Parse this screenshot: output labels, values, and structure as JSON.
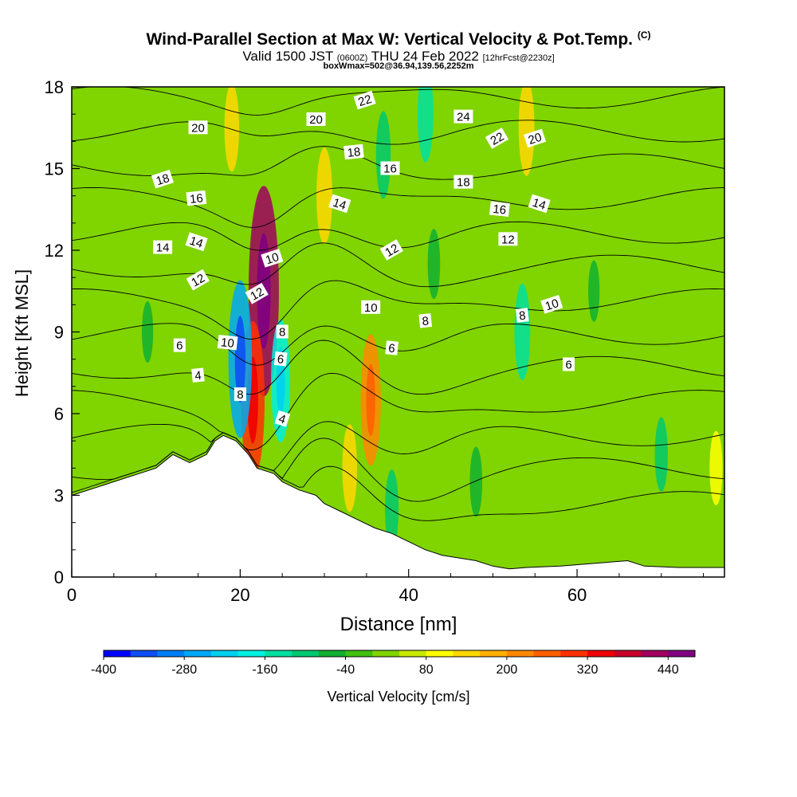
{
  "header": {
    "title": "Wind-Parallel Section at Max W: Vertical Velocity & Pot.Temp.",
    "title_mark": "(C)",
    "valid_a": "Valid 1500 JST",
    "valid_b": "(0600Z)",
    "valid_c": "THU 24 Feb 2022",
    "valid_d": "[12hrFcst@2230z]",
    "subtitle": "boxWmax=502@36.94,139.56,2252m"
  },
  "chart_data": {
    "type": "heatmap",
    "xlabel": "Distance [nm]",
    "ylabel": "Height [Kft MSL]",
    "xlim": [
      0,
      77.5
    ],
    "ylim": [
      0,
      18
    ],
    "x_ticks": [
      "0",
      "20",
      "40",
      "60"
    ],
    "y_ticks": [
      "0",
      "3",
      "6",
      "9",
      "12",
      "15",
      "18"
    ],
    "colorbar": {
      "label": "Vertical Velocity [cm/s]",
      "tick_labels": [
        "-400",
        "-280",
        "-160",
        "-40",
        "80",
        "200",
        "320",
        "440"
      ],
      "tick_values": [
        -400,
        -280,
        -160,
        -40,
        80,
        200,
        320,
        440
      ],
      "levels": [
        -400,
        -360,
        -320,
        -280,
        -240,
        -200,
        -160,
        -120,
        -80,
        -40,
        0,
        40,
        80,
        120,
        160,
        200,
        240,
        280,
        320,
        360,
        400,
        440,
        480
      ],
      "colors": [
        "#0000ff",
        "#0f4ff5",
        "#007ff5",
        "#00a8f5",
        "#00d0f0",
        "#00f0e0",
        "#00e0a0",
        "#00c870",
        "#10b030",
        "#40c010",
        "#80d400",
        "#c8ea00",
        "#ffff00",
        "#ffd800",
        "#ffb000",
        "#ff8800",
        "#ff6000",
        "#ff3000",
        "#f00000",
        "#c8002a",
        "#a00060",
        "#800080"
      ]
    },
    "terrain_kft": [
      [
        0,
        3.0
      ],
      [
        3,
        3.3
      ],
      [
        5,
        3.5
      ],
      [
        8,
        3.8
      ],
      [
        10,
        4.0
      ],
      [
        12,
        4.5
      ],
      [
        14,
        4.2
      ],
      [
        16,
        4.5
      ],
      [
        17,
        5.0
      ],
      [
        18,
        5.2
      ],
      [
        19.5,
        5.0
      ],
      [
        21,
        4.5
      ],
      [
        22,
        4.0
      ],
      [
        24,
        3.8
      ],
      [
        25,
        3.5
      ],
      [
        27,
        3.2
      ],
      [
        29,
        3.0
      ],
      [
        30,
        2.7
      ],
      [
        32,
        2.4
      ],
      [
        34,
        2.1
      ],
      [
        36,
        1.8
      ],
      [
        38,
        1.6
      ],
      [
        40,
        1.3
      ],
      [
        42,
        1.0
      ],
      [
        44,
        0.8
      ],
      [
        46,
        0.7
      ],
      [
        48,
        0.6
      ],
      [
        50,
        0.4
      ],
      [
        52,
        0.3
      ],
      [
        54,
        0.35
      ],
      [
        58,
        0.4
      ],
      [
        62,
        0.5
      ],
      [
        66,
        0.6
      ],
      [
        68,
        0.4
      ],
      [
        72,
        0.35
      ],
      [
        77.5,
        0.35
      ]
    ],
    "vertical_velocity_features_cms": [
      {
        "x": 22.8,
        "z": 10.5,
        "value": 400
      },
      {
        "x": 21.5,
        "z": 6.5,
        "value": 280
      },
      {
        "x": 20.0,
        "z": 8.0,
        "value": -280
      },
      {
        "x": 24.8,
        "z": 7.2,
        "value": -200
      },
      {
        "x": 35.5,
        "z": 6.5,
        "value": 220
      },
      {
        "x": 33.0,
        "z": 4.0,
        "value": 120
      },
      {
        "x": 19.0,
        "z": 16.5,
        "value": 120
      },
      {
        "x": 30.0,
        "z": 14.0,
        "value": 140
      },
      {
        "x": 54.0,
        "z": 16.5,
        "value": 140
      },
      {
        "x": 37.0,
        "z": 15.5,
        "value": -120
      },
      {
        "x": 42.0,
        "z": 17.0,
        "value": -140
      },
      {
        "x": 43.0,
        "z": 11.5,
        "value": -80
      },
      {
        "x": 53.5,
        "z": 9.0,
        "value": -140
      },
      {
        "x": 48.0,
        "z": 3.5,
        "value": -80
      },
      {
        "x": 38.0,
        "z": 2.5,
        "value": -100
      },
      {
        "x": 70.0,
        "z": 4.5,
        "value": -90
      },
      {
        "x": 9.0,
        "z": 9.0,
        "value": -60
      },
      {
        "x": 76.5,
        "z": 4.0,
        "value": 90
      },
      {
        "x": 62.0,
        "z": 10.5,
        "value": -60
      }
    ],
    "potential_temperature_contours_c": [
      2,
      4,
      6,
      8,
      10,
      12,
      14,
      16,
      18,
      20,
      22,
      24,
      26
    ],
    "contour_labels": [
      {
        "text": "20",
        "x": 15.0,
        "z": 16.5
      },
      {
        "text": "18",
        "x": 10.8,
        "z": 14.6
      },
      {
        "text": "16",
        "x": 14.8,
        "z": 13.9
      },
      {
        "text": "14",
        "x": 10.8,
        "z": 12.1
      },
      {
        "text": "14",
        "x": 14.8,
        "z": 12.3
      },
      {
        "text": "12",
        "x": 15.0,
        "z": 10.9
      },
      {
        "text": "6",
        "x": 12.8,
        "z": 8.5
      },
      {
        "text": "4",
        "x": 15.0,
        "z": 7.4
      },
      {
        "text": "10",
        "x": 18.5,
        "z": 8.6
      },
      {
        "text": "8",
        "x": 20.0,
        "z": 6.7
      },
      {
        "text": "12",
        "x": 22.0,
        "z": 10.4
      },
      {
        "text": "10",
        "x": 23.8,
        "z": 11.7
      },
      {
        "text": "8",
        "x": 25.0,
        "z": 9.0
      },
      {
        "text": "6",
        "x": 24.8,
        "z": 8.0
      },
      {
        "text": "4",
        "x": 25.0,
        "z": 5.8
      },
      {
        "text": "20",
        "x": 29.0,
        "z": 16.8
      },
      {
        "text": "22",
        "x": 34.8,
        "z": 17.5
      },
      {
        "text": "18",
        "x": 33.5,
        "z": 15.6
      },
      {
        "text": "16",
        "x": 37.8,
        "z": 15.0
      },
      {
        "text": "14",
        "x": 31.8,
        "z": 13.7
      },
      {
        "text": "12",
        "x": 38.0,
        "z": 12.0
      },
      {
        "text": "10",
        "x": 35.5,
        "z": 9.9
      },
      {
        "text": "8",
        "x": 42.0,
        "z": 9.4
      },
      {
        "text": "6",
        "x": 38.0,
        "z": 8.4
      },
      {
        "text": "24",
        "x": 46.5,
        "z": 16.9
      },
      {
        "text": "22",
        "x": 50.5,
        "z": 16.1
      },
      {
        "text": "20",
        "x": 55.0,
        "z": 16.1
      },
      {
        "text": "18",
        "x": 46.5,
        "z": 14.5
      },
      {
        "text": "16",
        "x": 50.8,
        "z": 13.5
      },
      {
        "text": "14",
        "x": 55.5,
        "z": 13.7
      },
      {
        "text": "12",
        "x": 51.8,
        "z": 12.4
      },
      {
        "text": "10",
        "x": 57.0,
        "z": 10.0
      },
      {
        "text": "8",
        "x": 53.5,
        "z": 9.6
      },
      {
        "text": "6",
        "x": 59.0,
        "z": 7.8
      }
    ]
  }
}
